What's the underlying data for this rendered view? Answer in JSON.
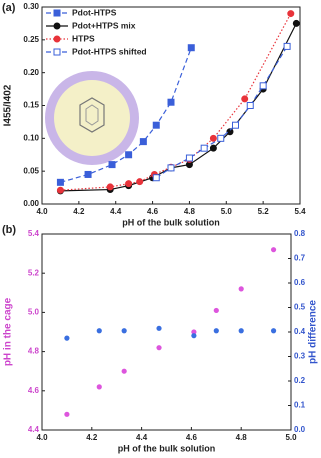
{
  "chart_data": [
    {
      "type": "line",
      "panel_label": "(a)",
      "xlabel": "pH of the bulk solution",
      "ylabel": "I455/I402",
      "xlim": [
        4.0,
        5.4
      ],
      "xticks": [
        {
          "value": 4,
          "label": "4.0"
        },
        4.2,
        4.4,
        4.6,
        4.8,
        {
          "value": 5,
          "label": "5.0"
        },
        5.2,
        5.4
      ],
      "ylim": [
        0.0,
        0.3
      ],
      "yticks": [
        {
          "value": 0,
          "label": "0.00"
        },
        0.05,
        {
          "value": 0.1,
          "label": "0.10"
        },
        0.15,
        {
          "value": 0.2,
          "label": "0.20"
        },
        0.25,
        {
          "value": 0.3,
          "label": "0.30"
        }
      ],
      "legend": "upper left",
      "series": [
        {
          "name": "Pdot-HTPS",
          "color": "#3a5fd9",
          "line_style": "dashed",
          "marker": "square",
          "marker_fill": "filled",
          "x": [
            4.1,
            4.25,
            4.38,
            4.47,
            4.55,
            4.62,
            4.7,
            4.81
          ],
          "values": [
            0.033,
            0.045,
            0.06,
            0.075,
            0.095,
            0.12,
            0.155,
            0.238
          ]
        },
        {
          "name": "Pdot+HTPS mix",
          "color": "#111111",
          "line_style": "solid",
          "marker": "circle",
          "marker_fill": "filled",
          "x": [
            4.1,
            4.37,
            4.47,
            4.6,
            4.7,
            4.8,
            4.93,
            5.02,
            5.2,
            5.38
          ],
          "values": [
            0.02,
            0.022,
            0.028,
            0.04,
            0.055,
            0.06,
            0.085,
            0.11,
            0.175,
            0.275
          ]
        },
        {
          "name": "HTPS",
          "color": "#e8333a",
          "line_style": "dotted",
          "marker": "circle",
          "marker_fill": "filled",
          "x": [
            4.1,
            4.37,
            4.47,
            4.53,
            4.61,
            4.7,
            4.8,
            4.93,
            5.1,
            5.35
          ],
          "values": [
            0.021,
            0.026,
            0.031,
            0.034,
            0.045,
            0.056,
            0.068,
            0.1,
            0.16,
            0.29
          ]
        },
        {
          "name": "Pdot-HTPS shifted",
          "color": "#3a5fd9",
          "line_style": "dashed",
          "marker": "square",
          "marker_fill": "open",
          "x": [
            4.62,
            4.7,
            4.8,
            4.88,
            4.97,
            5.05,
            5.13,
            5.2,
            5.33
          ],
          "values": [
            0.04,
            0.055,
            0.07,
            0.085,
            0.1,
            0.12,
            0.15,
            0.18,
            0.24
          ]
        }
      ]
    },
    {
      "type": "scatter",
      "panel_label": "(b)",
      "xlabel": "pH of the bulk solution",
      "ylabel": "pH in the cage",
      "y2label": "pH difference",
      "xlim": [
        4.0,
        5.0
      ],
      "xticks": [
        {
          "value": 4,
          "label": "4.0"
        },
        4.2,
        4.4,
        4.6,
        4.8,
        {
          "value": 5,
          "label": "5.0"
        }
      ],
      "ylim": [
        4.4,
        5.4
      ],
      "yticks": [
        4.4,
        4.6,
        4.8,
        {
          "value": 5,
          "label": "5.0"
        },
        5.2,
        5.4
      ],
      "y2lim": [
        0.0,
        0.8
      ],
      "y2ticks": [
        {
          "value": 0,
          "label": "0.0"
        },
        0.1,
        0.2,
        0.3,
        0.4,
        0.5,
        0.6,
        0.7,
        0.8
      ],
      "y_color": "#cc44cc",
      "y2_color": "#3355cc",
      "x": [
        4.1,
        4.23,
        4.33,
        4.47,
        4.61,
        4.7,
        4.8,
        4.93
      ],
      "series": [
        {
          "color": "#dd55dd",
          "values": [
            4.48,
            4.62,
            4.7,
            4.82,
            4.9,
            5.01,
            5.12,
            5.32
          ]
        },
        {
          "color": "#3a6fe0",
          "axis": "y2",
          "values": [
            0.375,
            0.405,
            0.405,
            0.415,
            0.385,
            0.405,
            0.405,
            0.405
          ]
        }
      ]
    }
  ]
}
